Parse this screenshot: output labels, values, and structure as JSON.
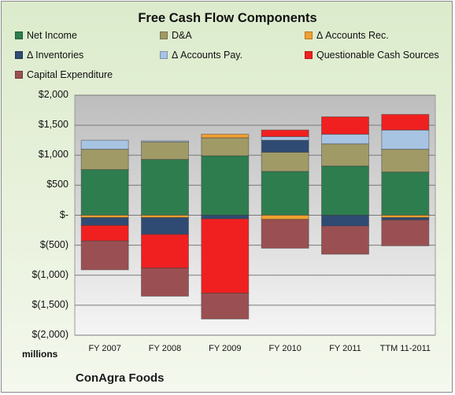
{
  "chart_data": {
    "type": "stacked-bar",
    "title": "Free Cash Flow Components",
    "ylabel": "",
    "xlabel": "",
    "units_label": "millions",
    "company": "ConAgra Foods",
    "ylim": [
      -2000,
      2000
    ],
    "grid": true,
    "legend_position": "top",
    "y_ticks": [
      {
        "value": 2000,
        "label": "$2,000"
      },
      {
        "value": 1500,
        "label": "$1,500"
      },
      {
        "value": 1000,
        "label": "$1,000"
      },
      {
        "value": 500,
        "label": "$500"
      },
      {
        "value": 0,
        "label": "$-"
      },
      {
        "value": -500,
        "label": "$(500)"
      },
      {
        "value": -1000,
        "label": "$(1,000)"
      },
      {
        "value": -1500,
        "label": "$(1,500)"
      },
      {
        "value": -2000,
        "label": "$(2,000)"
      }
    ],
    "categories": [
      "FY 2007",
      "FY 2008",
      "FY 2009",
      "FY 2010",
      "FY 2011",
      "TTM 11-2011"
    ],
    "series": [
      {
        "name": "Net Income",
        "color": "#2e7d4f",
        "values": [
          760,
          930,
          990,
          730,
          820,
          720
        ]
      },
      {
        "name": "D&A",
        "color": "#a09a67",
        "values": [
          340,
          290,
          300,
          320,
          370,
          380
        ]
      },
      {
        "name": "Δ Accounts Rec.",
        "color": "#f0a030",
        "values": [
          -40,
          -40,
          60,
          -70,
          0,
          -40
        ]
      },
      {
        "name": "Δ Inventories",
        "color": "#2f4b73",
        "values": [
          -130,
          -280,
          -60,
          200,
          -180,
          -40
        ]
      },
      {
        "name": "Δ Accounts Pay.",
        "color": "#a8c4e3",
        "values": [
          150,
          20,
          0,
          60,
          160,
          320
        ]
      },
      {
        "name": "Questionable Cash Sources",
        "color": "#f02020",
        "values": [
          -260,
          -560,
          -1240,
          110,
          290,
          260
        ]
      },
      {
        "name": "Capital Expenditure",
        "color": "#9a5052",
        "values": [
          -480,
          -470,
          -430,
          -480,
          -470,
          -430
        ]
      }
    ]
  }
}
